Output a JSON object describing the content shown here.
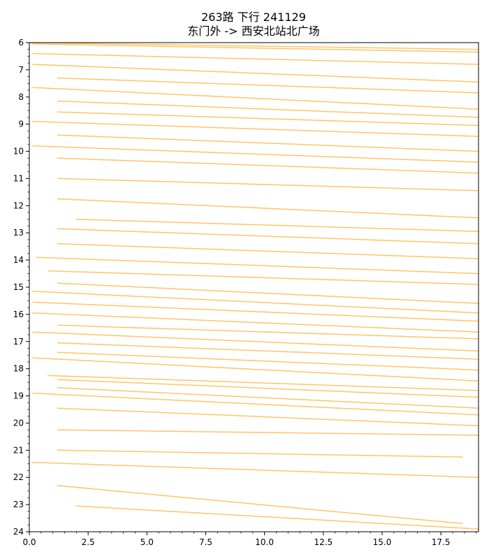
{
  "chart_data": {
    "type": "line",
    "title": "263路 下行 241129",
    "subtitle": "东门外 -> 西安北站北广场",
    "xlabel": "",
    "ylabel": "",
    "xlim": [
      0,
      19.1
    ],
    "ylim": [
      24,
      6
    ],
    "x_ticks": [
      0.0,
      2.5,
      5.0,
      7.5,
      10.0,
      12.5,
      15.0,
      17.5
    ],
    "x_tick_labels": [
      "0.0",
      "2.5",
      "5.0",
      "7.5",
      "10.0",
      "12.5",
      "15.0",
      "17.5"
    ],
    "y_ticks": [
      6,
      7,
      8,
      9,
      10,
      11,
      12,
      13,
      14,
      15,
      16,
      17,
      18,
      19,
      20,
      21,
      22,
      23,
      24
    ],
    "y_tick_labels": [
      "6",
      "7",
      "8",
      "9",
      "10",
      "11",
      "12",
      "13",
      "14",
      "15",
      "16",
      "17",
      "18",
      "19",
      "20",
      "21",
      "22",
      "23",
      "24"
    ],
    "y_inverted": true,
    "grid": false,
    "line_color": "#ffc466",
    "series": [
      {
        "points": [
          [
            0,
            6.0
          ],
          [
            19.1,
            6.25
          ]
        ]
      },
      {
        "points": [
          [
            0.15,
            6.05
          ],
          [
            19.1,
            6.35
          ]
        ]
      },
      {
        "points": [
          [
            0.15,
            6.4
          ],
          [
            19.1,
            6.8
          ]
        ]
      },
      {
        "points": [
          [
            0.15,
            6.8
          ],
          [
            19.1,
            7.45
          ]
        ]
      },
      {
        "points": [
          [
            1.2,
            7.3
          ],
          [
            19.1,
            7.85
          ]
        ]
      },
      {
        "points": [
          [
            0.15,
            7.65
          ],
          [
            19.1,
            8.45
          ]
        ]
      },
      {
        "points": [
          [
            1.2,
            8.15
          ],
          [
            19.1,
            8.75
          ]
        ]
      },
      {
        "points": [
          [
            1.2,
            8.55
          ],
          [
            19.1,
            9.05
          ]
        ]
      },
      {
        "points": [
          [
            0.15,
            8.9
          ],
          [
            19.1,
            9.45
          ]
        ]
      },
      {
        "points": [
          [
            1.2,
            9.4
          ],
          [
            19.1,
            10.0
          ]
        ]
      },
      {
        "points": [
          [
            0.15,
            9.8
          ],
          [
            19.1,
            10.4
          ]
        ]
      },
      {
        "points": [
          [
            1.2,
            10.25
          ],
          [
            19.1,
            10.8
          ]
        ]
      },
      {
        "points": [
          [
            1.2,
            11.0
          ],
          [
            19.1,
            11.45
          ]
        ]
      },
      {
        "points": [
          [
            1.2,
            11.75
          ],
          [
            19.1,
            12.45
          ]
        ]
      },
      {
        "points": [
          [
            2.0,
            12.5
          ],
          [
            19.1,
            12.95
          ]
        ]
      },
      {
        "points": [
          [
            1.2,
            12.85
          ],
          [
            19.1,
            13.4
          ]
        ]
      },
      {
        "points": [
          [
            1.2,
            13.4
          ],
          [
            19.1,
            13.95
          ]
        ]
      },
      {
        "points": [
          [
            0.3,
            13.9
          ],
          [
            19.1,
            14.5
          ]
        ]
      },
      {
        "points": [
          [
            0.8,
            14.4
          ],
          [
            19.1,
            14.9
          ]
        ]
      },
      {
        "points": [
          [
            1.2,
            14.85
          ],
          [
            19.1,
            15.6
          ]
        ]
      },
      {
        "points": [
          [
            0.15,
            15.15
          ],
          [
            19.1,
            15.95
          ]
        ]
      },
      {
        "points": [
          [
            0.15,
            15.55
          ],
          [
            19.1,
            16.25
          ]
        ]
      },
      {
        "points": [
          [
            0.15,
            15.95
          ],
          [
            19.1,
            16.65
          ]
        ]
      },
      {
        "points": [
          [
            1.2,
            16.4
          ],
          [
            19.1,
            16.9
          ]
        ]
      },
      {
        "points": [
          [
            0.15,
            16.65
          ],
          [
            19.1,
            17.35
          ]
        ]
      },
      {
        "points": [
          [
            1.2,
            17.05
          ],
          [
            19.1,
            17.65
          ]
        ]
      },
      {
        "points": [
          [
            1.2,
            17.4
          ],
          [
            19.1,
            18.05
          ]
        ]
      },
      {
        "points": [
          [
            0.15,
            17.6
          ],
          [
            19.1,
            18.45
          ]
        ]
      },
      {
        "points": [
          [
            0.8,
            18.25
          ],
          [
            19.1,
            18.8
          ]
        ]
      },
      {
        "points": [
          [
            1.2,
            18.4
          ],
          [
            19.1,
            19.05
          ]
        ]
      },
      {
        "points": [
          [
            1.2,
            18.7
          ],
          [
            19.1,
            19.45
          ]
        ]
      },
      {
        "points": [
          [
            0.15,
            18.9
          ],
          [
            19.1,
            19.7
          ]
        ]
      },
      {
        "points": [
          [
            1.2,
            19.45
          ],
          [
            19.1,
            20.1
          ]
        ]
      },
      {
        "points": [
          [
            1.2,
            20.25
          ],
          [
            19.1,
            20.45
          ]
        ]
      },
      {
        "points": [
          [
            1.2,
            21.0
          ],
          [
            18.4,
            21.25
          ]
        ]
      },
      {
        "points": [
          [
            0.15,
            21.45
          ],
          [
            19.1,
            22.0
          ]
        ]
      },
      {
        "points": [
          [
            1.2,
            22.3
          ],
          [
            18.4,
            23.7
          ]
        ]
      },
      {
        "points": [
          [
            2.0,
            23.05
          ],
          [
            19.1,
            23.9
          ]
        ]
      }
    ]
  }
}
